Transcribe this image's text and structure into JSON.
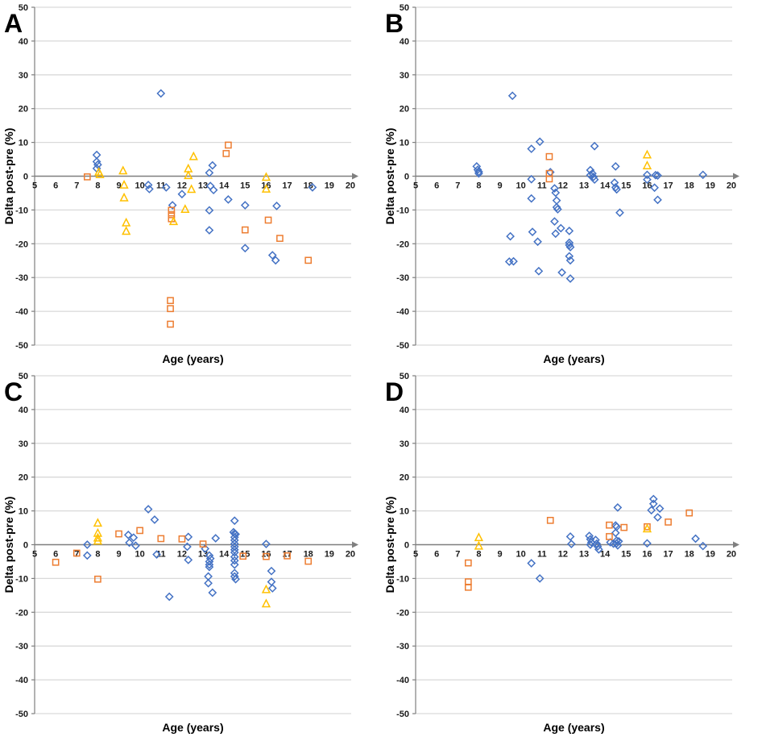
{
  "figure": {
    "xlabel": "Age (years)",
    "ylabel": "Delta post-pre (%)",
    "colors": {
      "axis": "#7f7f7f",
      "grid": "#d9d9d9",
      "text": "#1a1a1a",
      "blue": "#4472C4",
      "orange": "#ED7D31",
      "yellow": "#FFC000"
    }
  },
  "chart_data": [
    {
      "type": "scatter",
      "panel_label": "A",
      "xlabel": "Age (years)",
      "ylabel": "Delta post-pre (%)",
      "xlim": [
        5,
        20
      ],
      "ylim": [
        -50,
        50
      ],
      "xticks": [
        5,
        6,
        7,
        8,
        9,
        10,
        11,
        12,
        13,
        14,
        15,
        16,
        17,
        18,
        19,
        20
      ],
      "yticks": [
        50,
        40,
        30,
        20,
        10,
        0,
        -10,
        -20,
        -30,
        -40,
        -50
      ],
      "grid": "horizontal",
      "legend": "none",
      "series": [
        {
          "name": "blue-diamonds",
          "marker": "diamond",
          "color": "#4472C4",
          "points": [
            [
              7.95,
              6.3
            ],
            [
              7.95,
              4.3
            ],
            [
              8.0,
              3.4
            ],
            [
              7.95,
              2.3
            ],
            [
              10.4,
              -2.6
            ],
            [
              10.45,
              -3.8
            ],
            [
              11.0,
              24.5
            ],
            [
              11.25,
              -3.3
            ],
            [
              11.55,
              -8.6
            ],
            [
              12.0,
              -5.3
            ],
            [
              13.3,
              1.0
            ],
            [
              13.45,
              3.2
            ],
            [
              13.35,
              -2.9
            ],
            [
              13.5,
              -4.1
            ],
            [
              13.3,
              -10.1
            ],
            [
              13.3,
              -16.0
            ],
            [
              14.2,
              -6.9
            ],
            [
              15.0,
              -8.6
            ],
            [
              15.0,
              -21.3
            ],
            [
              16.5,
              -8.8
            ],
            [
              16.3,
              -23.4
            ],
            [
              16.45,
              -24.9
            ],
            [
              18.2,
              -3.3
            ]
          ]
        },
        {
          "name": "orange-squares",
          "marker": "square",
          "color": "#ED7D31",
          "points": [
            [
              7.5,
              -0.2
            ],
            [
              11.5,
              -10.1
            ],
            [
              11.5,
              -11.4
            ],
            [
              11.5,
              -12.6
            ],
            [
              11.45,
              -36.8
            ],
            [
              11.45,
              -39.2
            ],
            [
              11.45,
              -43.8
            ],
            [
              14.2,
              9.2
            ],
            [
              14.1,
              6.7
            ],
            [
              15.0,
              -15.9
            ],
            [
              16.1,
              -13.0
            ],
            [
              16.65,
              -18.4
            ],
            [
              18.0,
              -24.9
            ]
          ]
        },
        {
          "name": "yellow-triangles",
          "marker": "triangle",
          "color": "#FFC000",
          "points": [
            [
              8.05,
              1.2
            ],
            [
              8.1,
              0.5
            ],
            [
              9.2,
              1.6
            ],
            [
              9.25,
              -2.6
            ],
            [
              9.25,
              -6.4
            ],
            [
              9.35,
              -13.8
            ],
            [
              9.35,
              -16.3
            ],
            [
              11.6,
              -13.4
            ],
            [
              12.15,
              -9.8
            ],
            [
              12.3,
              2.2
            ],
            [
              12.3,
              0.2
            ],
            [
              12.45,
              -3.9
            ],
            [
              12.55,
              5.8
            ],
            [
              16.0,
              -0.3
            ],
            [
              16.0,
              -3.8
            ]
          ]
        }
      ]
    },
    {
      "type": "scatter",
      "panel_label": "B",
      "xlabel": "Age (years)",
      "ylabel": "Delta post-pre (%)",
      "xlim": [
        5,
        20
      ],
      "ylim": [
        -50,
        50
      ],
      "xticks": [
        5,
        6,
        7,
        8,
        9,
        10,
        11,
        12,
        13,
        14,
        15,
        16,
        17,
        18,
        19,
        20
      ],
      "yticks": [
        50,
        40,
        30,
        20,
        10,
        0,
        -10,
        -20,
        -30,
        -40,
        -50
      ],
      "grid": "horizontal",
      "legend": "none",
      "series": [
        {
          "name": "blue-diamonds",
          "marker": "diamond",
          "color": "#4472C4",
          "points": [
            [
              7.9,
              2.9
            ],
            [
              7.95,
              1.9
            ],
            [
              8.0,
              1.3
            ],
            [
              8.0,
              0.8
            ],
            [
              9.6,
              23.8
            ],
            [
              9.5,
              -17.8
            ],
            [
              9.45,
              -25.3
            ],
            [
              9.65,
              -25.2
            ],
            [
              10.5,
              8.1
            ],
            [
              10.5,
              -0.9
            ],
            [
              10.5,
              -6.6
            ],
            [
              10.55,
              -16.5
            ],
            [
              10.8,
              -19.4
            ],
            [
              10.85,
              -28.1
            ],
            [
              10.9,
              10.2
            ],
            [
              11.4,
              1.2
            ],
            [
              11.6,
              -3.6
            ],
            [
              11.65,
              -4.9
            ],
            [
              11.7,
              -7.2
            ],
            [
              11.7,
              -9.2
            ],
            [
              11.75,
              -9.8
            ],
            [
              11.6,
              -13.4
            ],
            [
              11.65,
              -17.0
            ],
            [
              11.9,
              -15.4
            ],
            [
              11.95,
              -28.5
            ],
            [
              12.3,
              -16.2
            ],
            [
              12.3,
              -19.7
            ],
            [
              12.3,
              -20.4
            ],
            [
              12.35,
              -21.0
            ],
            [
              12.3,
              -23.7
            ],
            [
              12.35,
              -24.9
            ],
            [
              12.35,
              -30.3
            ],
            [
              13.3,
              1.8
            ],
            [
              13.3,
              0.3
            ],
            [
              13.4,
              0.8
            ],
            [
              13.45,
              -0.2
            ],
            [
              13.5,
              -1.0
            ],
            [
              13.5,
              8.9
            ],
            [
              14.5,
              2.9
            ],
            [
              14.45,
              -1.9
            ],
            [
              14.5,
              -3.3
            ],
            [
              14.55,
              -3.9
            ],
            [
              14.7,
              -10.8
            ],
            [
              16.0,
              0.4
            ],
            [
              16.0,
              -1.0
            ],
            [
              16.4,
              0.3
            ],
            [
              16.5,
              0.2
            ],
            [
              16.35,
              -3.4
            ],
            [
              16.5,
              -7.0
            ],
            [
              18.65,
              0.4
            ]
          ]
        },
        {
          "name": "orange-squares",
          "marker": "square",
          "color": "#ED7D31",
          "points": [
            [
              11.35,
              5.8
            ],
            [
              11.35,
              0.8
            ],
            [
              11.35,
              -0.8
            ]
          ]
        },
        {
          "name": "yellow-triangles",
          "marker": "triangle",
          "color": "#FFC000",
          "points": [
            [
              16.0,
              6.3
            ],
            [
              16.0,
              3.1
            ]
          ]
        }
      ]
    },
    {
      "type": "scatter",
      "panel_label": "C",
      "xlabel": "Age (years)",
      "ylabel": "Delta post-pre (%)",
      "xlim": [
        5,
        20
      ],
      "ylim": [
        -50,
        50
      ],
      "xticks": [
        5,
        6,
        7,
        8,
        9,
        10,
        11,
        12,
        13,
        14,
        15,
        16,
        17,
        18,
        19,
        20
      ],
      "yticks": [
        50,
        40,
        30,
        20,
        10,
        0,
        -10,
        -20,
        -30,
        -40,
        -50
      ],
      "grid": "horizontal",
      "legend": "none",
      "series": [
        {
          "name": "blue-diamonds",
          "marker": "diamond",
          "color": "#4472C4",
          "points": [
            [
              7.5,
              0.0
            ],
            [
              7.5,
              -3.2
            ],
            [
              9.45,
              2.9
            ],
            [
              9.7,
              2.1
            ],
            [
              9.5,
              0.6
            ],
            [
              9.8,
              -0.3
            ],
            [
              10.4,
              10.5
            ],
            [
              10.7,
              7.4
            ],
            [
              10.8,
              -2.9
            ],
            [
              11.4,
              -15.4
            ],
            [
              12.3,
              2.3
            ],
            [
              12.25,
              -0.6
            ],
            [
              12.3,
              -4.5
            ],
            [
              13.1,
              -1.2
            ],
            [
              13.3,
              -3.2
            ],
            [
              13.35,
              -4.1
            ],
            [
              13.3,
              -5.0
            ],
            [
              13.3,
              -5.9
            ],
            [
              13.3,
              -6.6
            ],
            [
              13.25,
              -9.4
            ],
            [
              13.25,
              -11.4
            ],
            [
              13.45,
              -14.2
            ],
            [
              13.6,
              1.9
            ],
            [
              14.5,
              7.1
            ],
            [
              14.45,
              3.7
            ],
            [
              14.5,
              3.3
            ],
            [
              14.55,
              3.1
            ],
            [
              14.5,
              2.2
            ],
            [
              14.5,
              1.3
            ],
            [
              14.5,
              0.3
            ],
            [
              14.5,
              -0.6
            ],
            [
              14.5,
              -1.5
            ],
            [
              14.5,
              -2.3
            ],
            [
              14.5,
              -3.6
            ],
            [
              14.5,
              -4.7
            ],
            [
              14.5,
              -5.9
            ],
            [
              14.5,
              -8.4
            ],
            [
              14.5,
              -9.4
            ],
            [
              14.55,
              -10.2
            ],
            [
              16.0,
              0.2
            ],
            [
              16.25,
              -7.8
            ],
            [
              16.25,
              -11.0
            ],
            [
              16.3,
              -12.9
            ]
          ]
        },
        {
          "name": "orange-squares",
          "marker": "square",
          "color": "#ED7D31",
          "points": [
            [
              6.0,
              -5.2
            ],
            [
              7.0,
              -2.5
            ],
            [
              8.0,
              -10.2
            ],
            [
              9.0,
              3.2
            ],
            [
              10.0,
              4.2
            ],
            [
              11.0,
              1.8
            ],
            [
              12.0,
              1.7
            ],
            [
              13.0,
              0.2
            ],
            [
              14.9,
              -3.4
            ],
            [
              16.0,
              -3.5
            ],
            [
              17.0,
              -3.3
            ],
            [
              18.0,
              -4.9
            ]
          ]
        },
        {
          "name": "yellow-triangles",
          "marker": "triangle",
          "color": "#FFC000",
          "points": [
            [
              8.0,
              6.4
            ],
            [
              8.0,
              3.4
            ],
            [
              8.0,
              2.0
            ],
            [
              8.0,
              1.1
            ],
            [
              16.0,
              -13.3
            ],
            [
              16.0,
              -17.5
            ]
          ]
        }
      ]
    },
    {
      "type": "scatter",
      "panel_label": "D",
      "xlabel": "Age (years)",
      "ylabel": "Delta post-pre (%)",
      "xlim": [
        5,
        20
      ],
      "ylim": [
        -50,
        50
      ],
      "xticks": [
        5,
        6,
        7,
        8,
        9,
        10,
        11,
        12,
        13,
        14,
        15,
        16,
        17,
        18,
        19,
        20
      ],
      "yticks": [
        50,
        40,
        30,
        20,
        10,
        0,
        -10,
        -20,
        -30,
        -40,
        -50
      ],
      "grid": "horizontal",
      "legend": "none",
      "series": [
        {
          "name": "blue-diamonds",
          "marker": "diamond",
          "color": "#4472C4",
          "points": [
            [
              10.5,
              -5.5
            ],
            [
              10.9,
              -10.0
            ],
            [
              12.35,
              2.4
            ],
            [
              12.4,
              0.2
            ],
            [
              13.25,
              2.6
            ],
            [
              13.3,
              1.6
            ],
            [
              13.35,
              0.7
            ],
            [
              13.3,
              0.0
            ],
            [
              13.55,
              1.4
            ],
            [
              13.6,
              0.3
            ],
            [
              13.65,
              -0.5
            ],
            [
              13.7,
              -1.4
            ],
            [
              14.25,
              0.7
            ],
            [
              14.4,
              0.3
            ],
            [
              14.5,
              5.7
            ],
            [
              14.55,
              5.3
            ],
            [
              14.5,
              3.5
            ],
            [
              14.55,
              1.2
            ],
            [
              14.55,
              0.4
            ],
            [
              14.6,
              -0.2
            ],
            [
              14.65,
              1.0
            ],
            [
              14.6,
              11.0
            ],
            [
              16.0,
              0.4
            ],
            [
              16.3,
              13.5
            ],
            [
              16.3,
              12.1
            ],
            [
              16.2,
              10.2
            ],
            [
              16.6,
              10.7
            ],
            [
              16.5,
              8.1
            ],
            [
              18.3,
              1.8
            ],
            [
              18.65,
              -0.4
            ]
          ]
        },
        {
          "name": "orange-squares",
          "marker": "square",
          "color": "#ED7D31",
          "points": [
            [
              7.5,
              -5.4
            ],
            [
              7.5,
              -11.0
            ],
            [
              7.5,
              -12.6
            ],
            [
              11.4,
              7.2
            ],
            [
              14.2,
              5.8
            ],
            [
              14.2,
              2.4
            ],
            [
              14.9,
              5.1
            ],
            [
              16.0,
              5.3
            ],
            [
              17.0,
              6.7
            ],
            [
              18.0,
              9.4
            ]
          ]
        },
        {
          "name": "yellow-triangles",
          "marker": "triangle",
          "color": "#FFC000",
          "points": [
            [
              8.0,
              2.1
            ],
            [
              8.0,
              -0.4
            ],
            [
              16.0,
              4.7
            ]
          ]
        }
      ]
    }
  ]
}
